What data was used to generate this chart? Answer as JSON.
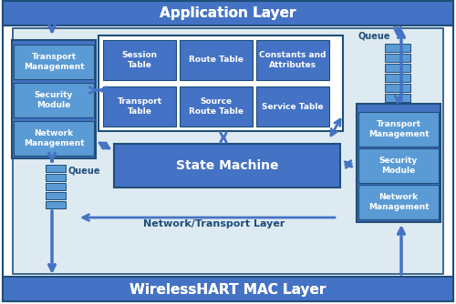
{
  "fig_width": 5.0,
  "fig_height": 3.34,
  "dpi": 100,
  "bg_color": "#FFFFFF",
  "dark_blue": "#1F4E79",
  "medium_blue": "#2E75B6",
  "box_blue": "#4472C4",
  "light_box": "#5B9BD5",
  "inner_bg": "#BDD7EE",
  "outer_bg": "#DEEAF1",
  "app_layer_text": "Application Layer",
  "mac_layer_text": "WirelessHART MAC Layer",
  "state_machine_text": "State Machine",
  "network_transport_text": "Network/Transport Layer",
  "queue_text": "Queue",
  "left_boxes": [
    "Transport\nManagement",
    "Security\nModule",
    "Network\nManagement"
  ],
  "right_boxes": [
    "Transport\nManagement",
    "Security\nModule",
    "Network\nManagement"
  ],
  "table_boxes_row1": [
    "Session\nTable",
    "Route Table",
    "Constants and\nAttributes"
  ],
  "table_boxes_row2": [
    "Transport\nTable",
    "Source\nRoute Table",
    "Service Table"
  ]
}
